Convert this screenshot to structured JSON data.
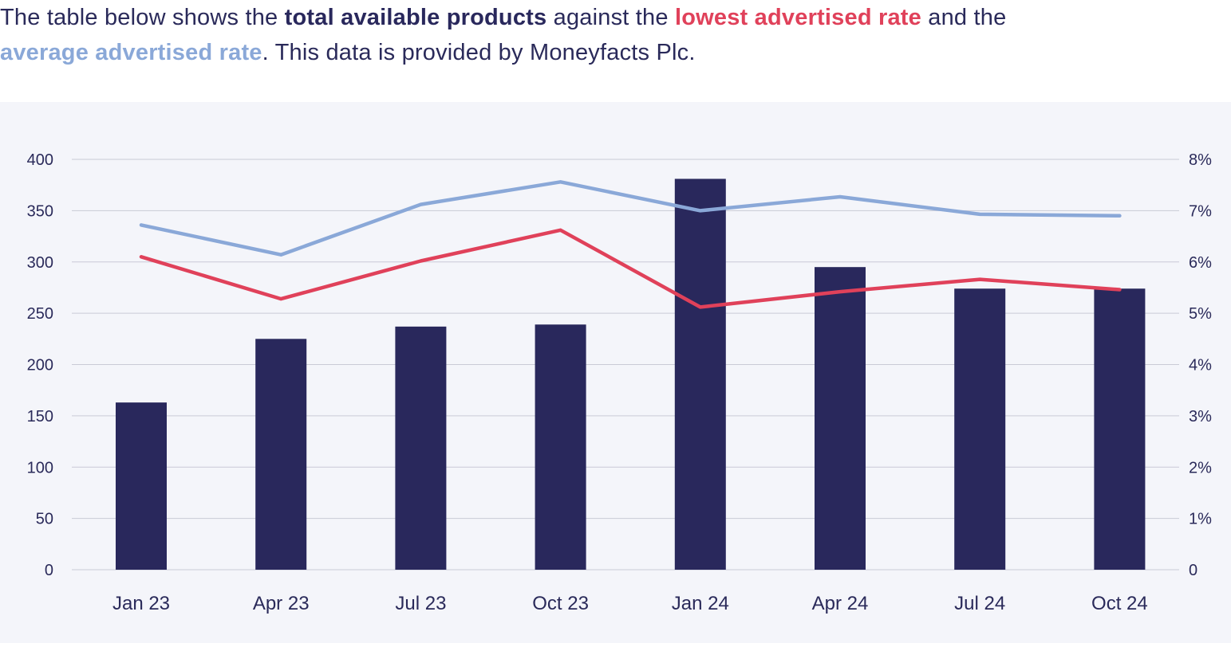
{
  "intro": {
    "part1": "The table below shows the ",
    "highlight_products": "total available products",
    "part2": " against the ",
    "highlight_lowest": "lowest advertised rate",
    "part3": " and the",
    "highlight_average": "average advertised rate",
    "part4": ". This data is provided by Moneyfacts Plc."
  },
  "colors": {
    "bars": "#29285c",
    "lowest_rate": "#e0415a",
    "average_rate": "#8aa8d8",
    "grid": "#c9cad6",
    "tick_text": "#2a2a5a",
    "panel_bg": "#f4f5fa"
  },
  "chart_data": {
    "type": "bar",
    "categories": [
      "Jan 23",
      "Apr 23",
      "Jul 23",
      "Oct 23",
      "Jan 24",
      "Apr 24",
      "Jul 24",
      "Oct 24"
    ],
    "y_left": {
      "ticks": [
        "0",
        "50",
        "100",
        "150",
        "200",
        "250",
        "300",
        "350",
        "400"
      ],
      "ylim": [
        0,
        400
      ]
    },
    "y_right": {
      "ticks": [
        "0",
        "1%",
        "2%",
        "3%",
        "4%",
        "5%",
        "6%",
        "7%",
        "8%"
      ],
      "ylim": [
        0,
        8
      ]
    },
    "grid": true,
    "series": [
      {
        "type": "bar",
        "axis": "left",
        "values": [
          163,
          225,
          237,
          239,
          381,
          295,
          274,
          274
        ]
      },
      {
        "type": "line",
        "axis": "right",
        "values": [
          6.1,
          5.28,
          6.02,
          6.62,
          5.12,
          5.42,
          5.66,
          5.46
        ]
      },
      {
        "type": "line",
        "axis": "right",
        "values": [
          6.72,
          6.14,
          7.12,
          7.56,
          7.0,
          7.27,
          6.93,
          6.9
        ]
      }
    ]
  }
}
